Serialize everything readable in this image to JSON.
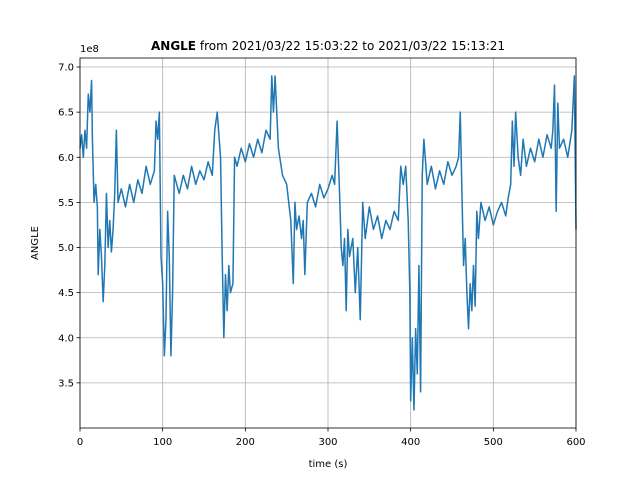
{
  "chart_data": {
    "type": "line",
    "title_bold": "ANGLE",
    "title": "from 2021/03/22 15:03:22 to 2021/03/22 15:13:21",
    "offset_text": "1e8",
    "xlabel": "time (s)",
    "ylabel": "ANGLE",
    "color": "#1f77b4",
    "grid": true,
    "xlim": [
      0,
      600
    ],
    "xticks": [
      0,
      100,
      200,
      300,
      400,
      500,
      600
    ],
    "ylim": [
      3.0,
      7.1
    ],
    "yticks": [
      3.5,
      {
        "value": 4,
        "label": "4.0"
      },
      4.5,
      {
        "value": 5,
        "label": "5.0"
      },
      5.5,
      {
        "value": 6,
        "label": "6.0"
      },
      6.5,
      {
        "value": 7,
        "label": "7.0"
      }
    ],
    "x": [
      0,
      2,
      4,
      6,
      8,
      10,
      12,
      14,
      15,
      17,
      19,
      21,
      22,
      24,
      26,
      28,
      30,
      32,
      34,
      36,
      38,
      40,
      42,
      44,
      46,
      50,
      55,
      60,
      65,
      70,
      75,
      80,
      85,
      90,
      92,
      94,
      96,
      98,
      100,
      102,
      104,
      106,
      108,
      110,
      112,
      114,
      120,
      125,
      130,
      135,
      140,
      145,
      150,
      155,
      160,
      163,
      166,
      170,
      172,
      174,
      176,
      178,
      180,
      182,
      185,
      187,
      190,
      195,
      200,
      205,
      210,
      215,
      220,
      225,
      230,
      232,
      234,
      236,
      240,
      245,
      250,
      255,
      258,
      260,
      262,
      265,
      268,
      270,
      272,
      275,
      280,
      285,
      290,
      295,
      300,
      305,
      308,
      311,
      314,
      316,
      318,
      320,
      322,
      324,
      326,
      330,
      333,
      336,
      339,
      342,
      345,
      350,
      355,
      360,
      365,
      370,
      375,
      380,
      385,
      388,
      391,
      394,
      397,
      399,
      400,
      402,
      404,
      406,
      408,
      410,
      412,
      414,
      416,
      420,
      425,
      430,
      435,
      440,
      445,
      450,
      455,
      458,
      460,
      462,
      464,
      466,
      468,
      470,
      472,
      474,
      476,
      478,
      480,
      482,
      485,
      490,
      495,
      500,
      505,
      510,
      515,
      518,
      521,
      523,
      525,
      527,
      530,
      533,
      536,
      540,
      545,
      550,
      555,
      560,
      565,
      570,
      572,
      574,
      576,
      578,
      580,
      585,
      590,
      595,
      598,
      600
    ],
    "values": [
      6.1,
      6.25,
      6.0,
      6.3,
      6.1,
      6.7,
      6.5,
      6.85,
      6.2,
      5.5,
      5.7,
      5.45,
      4.7,
      5.2,
      4.9,
      4.4,
      4.8,
      5.6,
      5.0,
      5.3,
      4.95,
      5.2,
      5.6,
      6.3,
      5.5,
      5.65,
      5.45,
      5.7,
      5.5,
      5.75,
      5.6,
      5.9,
      5.7,
      5.85,
      6.4,
      6.2,
      6.5,
      4.9,
      4.6,
      3.8,
      4.2,
      5.4,
      4.9,
      3.8,
      4.5,
      5.8,
      5.6,
      5.8,
      5.65,
      5.9,
      5.7,
      5.85,
      5.75,
      5.95,
      5.8,
      6.3,
      6.5,
      6.0,
      4.9,
      4.0,
      4.7,
      4.3,
      4.8,
      4.5,
      4.6,
      6.0,
      5.9,
      6.1,
      5.95,
      6.15,
      6.0,
      6.2,
      6.05,
      6.3,
      6.2,
      6.9,
      6.5,
      6.9,
      6.1,
      5.8,
      5.7,
      5.3,
      4.6,
      5.5,
      5.2,
      5.35,
      5.1,
      5.3,
      4.7,
      5.5,
      5.6,
      5.45,
      5.7,
      5.55,
      5.65,
      5.8,
      5.7,
      6.4,
      5.6,
      5.0,
      4.8,
      5.1,
      4.3,
      5.2,
      4.9,
      5.1,
      4.5,
      5.0,
      4.2,
      5.5,
      5.1,
      5.45,
      5.2,
      5.35,
      5.1,
      5.3,
      5.2,
      5.4,
      5.3,
      5.9,
      5.7,
      5.9,
      5.3,
      4.5,
      3.3,
      4.0,
      3.2,
      4.1,
      3.6,
      4.8,
      3.4,
      5.8,
      6.2,
      5.7,
      5.9,
      5.65,
      5.85,
      5.7,
      5.95,
      5.8,
      5.9,
      6.0,
      6.5,
      5.6,
      4.8,
      5.1,
      4.5,
      4.1,
      4.6,
      4.3,
      4.8,
      4.35,
      5.4,
      5.1,
      5.5,
      5.3,
      5.45,
      5.25,
      5.4,
      5.5,
      5.35,
      5.55,
      5.7,
      6.4,
      5.9,
      6.5,
      6.0,
      5.8,
      6.2,
      5.9,
      6.1,
      5.95,
      6.2,
      6.0,
      6.25,
      6.1,
      6.3,
      6.8,
      5.4,
      6.6,
      6.1,
      6.2,
      6.0,
      6.3,
      6.9,
      5.2
    ]
  }
}
